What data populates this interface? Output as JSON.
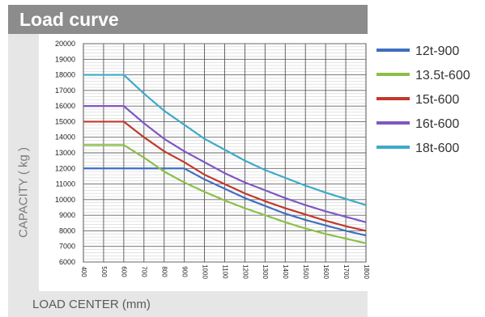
{
  "header": {
    "title": "Load curve"
  },
  "chart_data": {
    "type": "line",
    "title": "Load curve",
    "xlabel": "LOAD CENTER  (mm)",
    "ylabel": "CAPACITY ( kg )",
    "x_ticks": [
      "400",
      "500",
      "600",
      "700",
      "800",
      "900",
      "1000",
      "1100",
      "1200",
      "1300",
      "1400",
      "1500",
      "1600",
      "1700",
      "1800"
    ],
    "xlim": [
      400,
      1800
    ],
    "ylim": [
      6000,
      20000
    ],
    "y_ticks": [
      "20000",
      "19000",
      "18000",
      "17000",
      "16000",
      "15000",
      "14000",
      "13000",
      "12000",
      "11000",
      "10000",
      "9000",
      "8000",
      "7000",
      "6000"
    ],
    "legend_position": "right",
    "grid": true,
    "series": [
      {
        "name": "12t-900",
        "color": "#3f6fbf",
        "x": [
          400,
          500,
          600,
          700,
          800,
          900,
          1000,
          1100,
          1200,
          1300,
          1400,
          1500,
          1600,
          1700,
          1800
        ],
        "y": [
          12000,
          12000,
          12000,
          12000,
          12000,
          12000,
          11300,
          10700,
          10100,
          9600,
          9100,
          8700,
          8350,
          8000,
          7700
        ]
      },
      {
        "name": "13.5t-600",
        "color": "#8cbf4a",
        "x": [
          400,
          500,
          600,
          700,
          800,
          900,
          1000,
          1100,
          1200,
          1300,
          1400,
          1500,
          1600,
          1700,
          1800
        ],
        "y": [
          13500,
          13500,
          13500,
          12700,
          11800,
          11100,
          10500,
          9950,
          9450,
          9000,
          8550,
          8150,
          7800,
          7500,
          7200
        ]
      },
      {
        "name": "15t-600",
        "color": "#c0392b",
        "x": [
          400,
          500,
          600,
          700,
          800,
          900,
          1000,
          1100,
          1200,
          1300,
          1400,
          1500,
          1600,
          1700,
          1800
        ],
        "y": [
          15000,
          15000,
          15000,
          14000,
          13100,
          12400,
          11600,
          11000,
          10400,
          9900,
          9450,
          9050,
          8650,
          8300,
          8000
        ]
      },
      {
        "name": "16t-600",
        "color": "#7e57c2",
        "x": [
          400,
          500,
          600,
          700,
          800,
          900,
          1000,
          1100,
          1200,
          1300,
          1400,
          1500,
          1600,
          1700,
          1800
        ],
        "y": [
          16000,
          16000,
          16000,
          14900,
          13900,
          13100,
          12400,
          11700,
          11100,
          10600,
          10100,
          9650,
          9250,
          8900,
          8550
        ]
      },
      {
        "name": "18t-600",
        "color": "#3fa9c7",
        "x": [
          400,
          500,
          600,
          700,
          800,
          900,
          1000,
          1100,
          1200,
          1300,
          1400,
          1500,
          1600,
          1700,
          1800
        ],
        "y": [
          18000,
          18000,
          18000,
          16800,
          15700,
          14800,
          13900,
          13200,
          12500,
          11900,
          11400,
          10900,
          10450,
          10050,
          9650
        ]
      }
    ]
  }
}
